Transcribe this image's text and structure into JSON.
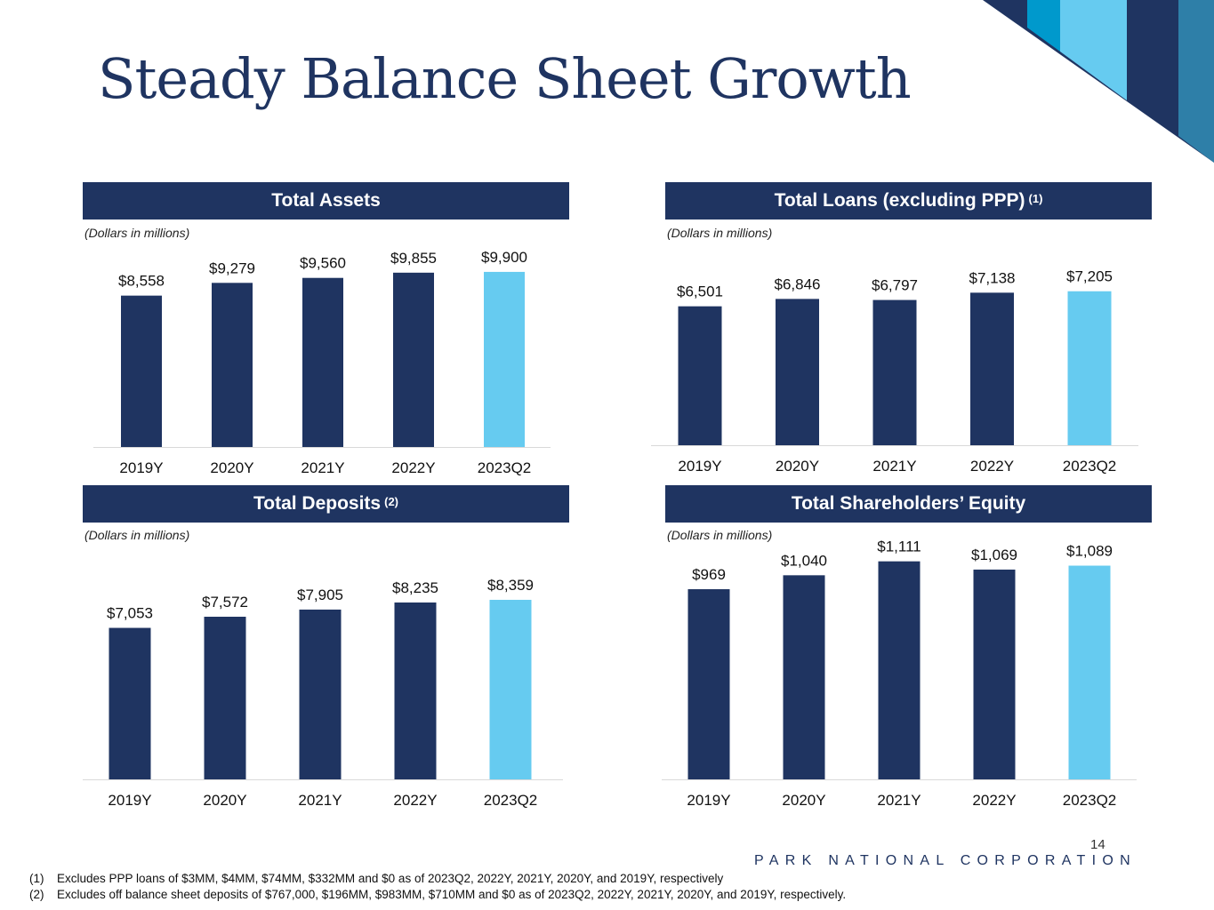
{
  "title": "Steady Balance Sheet Growth",
  "colors": {
    "navy": "#1f3461",
    "highlight": "#66cbf0",
    "accent_blue": "#0099cc",
    "teal": "#2e7fa8"
  },
  "units_note": "(Dollars in millions)",
  "panels": {
    "assets": {
      "title": "Total Assets",
      "sup": ""
    },
    "loans": {
      "title": "Total Loans (excluding PPP)",
      "sup": "(1)"
    },
    "deposits": {
      "title": "Total Deposits",
      "sup": "(2)"
    },
    "equity": {
      "title": "Total Shareholders’ Equity",
      "sup": ""
    }
  },
  "chart_data": [
    {
      "id": "assets",
      "type": "bar",
      "title": "Total Assets",
      "categories": [
        "2019Y",
        "2020Y",
        "2021Y",
        "2022Y",
        "2023Q2"
      ],
      "values": [
        8558,
        9279,
        9560,
        9855,
        9900
      ],
      "labels": [
        "$8,558",
        "$9,279",
        "$9,560",
        "$9,855",
        "$9,900"
      ],
      "highlight_last": true,
      "ylim": [
        0,
        10500
      ]
    },
    {
      "id": "loans",
      "type": "bar",
      "title": "Total Loans (excluding PPP) (1)",
      "categories": [
        "2019Y",
        "2020Y",
        "2021Y",
        "2022Y",
        "2023Q2"
      ],
      "values": [
        6501,
        6846,
        6797,
        7138,
        7205
      ],
      "labels": [
        "$6,501",
        "$6,846",
        "$6,797",
        "$7,138",
        "$7,205"
      ],
      "highlight_last": true,
      "ylim": [
        0,
        8650
      ]
    },
    {
      "id": "deposits",
      "type": "bar",
      "title": "Total Deposits (2)",
      "categories": [
        "2019Y",
        "2020Y",
        "2021Y",
        "2022Y",
        "2023Q2"
      ],
      "values": [
        7053,
        7572,
        7905,
        8235,
        8359
      ],
      "labels": [
        "$7,053",
        "$7,572",
        "$7,905",
        "$8,235",
        "$8,359"
      ],
      "highlight_last": true,
      "ylim": [
        0,
        9930
      ]
    },
    {
      "id": "equity",
      "type": "bar",
      "title": "Total Shareholders’ Equity",
      "categories": [
        "2019Y",
        "2020Y",
        "2021Y",
        "2022Y",
        "2023Q2"
      ],
      "values": [
        969,
        1040,
        1111,
        1069,
        1089
      ],
      "labels": [
        "$969",
        "$1,040",
        "$1,111",
        "$1,069",
        "$1,089"
      ],
      "highlight_last": true,
      "ylim": [
        0,
        1200
      ]
    }
  ],
  "page_number": "14",
  "company": "PARK NATIONAL CORPORATION",
  "footnotes": [
    {
      "mark": "(1)",
      "text": "Excludes PPP loans of $3MM, $4MM, $74MM, $332MM and $0 as of 2023Q2, 2022Y, 2021Y, 2020Y, and 2019Y, respectively"
    },
    {
      "mark": "(2)",
      "text": "Excludes off balance sheet deposits of $767,000, $196MM, $983MM, $710MM and $0 as of 2023Q2, 2022Y, 2021Y, 2020Y, and 2019Y, respectively."
    }
  ]
}
